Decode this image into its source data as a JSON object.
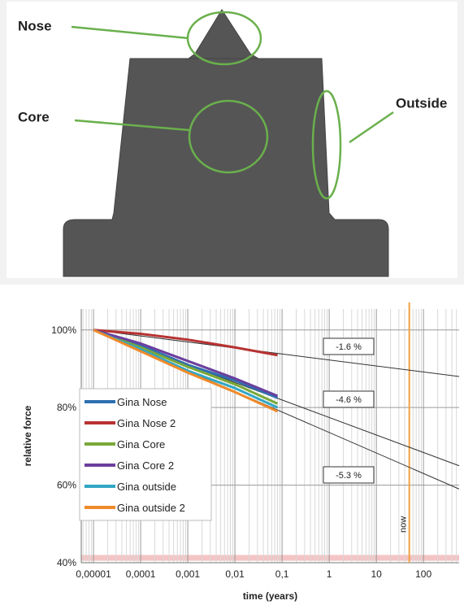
{
  "diagram": {
    "labels": {
      "nose": "Nose",
      "core": "Core",
      "outside": "Outside"
    }
  },
  "chart_data": {
    "type": "line",
    "x_axis_label": "time (years)",
    "y_axis_label": "relative force",
    "log_x": true,
    "grid": true,
    "minor_grid": true,
    "legend_position": "lower-left",
    "xlim": [
      5.5e-06,
      570
    ],
    "ylim": [
      40,
      105.4
    ],
    "xticks": [
      {
        "value": 1e-05,
        "label": "0,00001"
      },
      {
        "value": 0.0001,
        "label": "0,0001"
      },
      {
        "value": 0.001,
        "label": "0,001"
      },
      {
        "value": 0.01,
        "label": "0,01"
      },
      {
        "value": 0.1,
        "label": "0,1"
      },
      1,
      10,
      100
    ],
    "yticks": [
      {
        "value": 40,
        "label": "40%"
      },
      {
        "value": 60,
        "label": "60%"
      },
      {
        "value": 80,
        "label": "80%"
      },
      {
        "value": 100,
        "label": "100%"
      }
    ],
    "x": [
      1e-05,
      0.0001,
      0.001,
      0.01,
      0.08
    ],
    "series": [
      {
        "name": "Gina Nose",
        "color": "#2e6fb0",
        "values": [
          100,
          96,
          91,
          87,
          82.5
        ]
      },
      {
        "name": "Gina Nose 2",
        "color": "#b83232",
        "values": [
          100,
          99,
          97.5,
          95.5,
          93.5
        ]
      },
      {
        "name": "Gina Core",
        "color": "#79a838",
        "values": [
          100,
          95.5,
          90.5,
          86,
          81
        ]
      },
      {
        "name": "Gina Core 2",
        "color": "#6b3f9e",
        "values": [
          100,
          96.5,
          92,
          87.5,
          83
        ]
      },
      {
        "name": "Gina outside",
        "color": "#31a6c4",
        "values": [
          100,
          95,
          89.5,
          85,
          80
        ]
      },
      {
        "name": "Gina outside 2",
        "color": "#ef8a2a",
        "values": [
          100,
          94.5,
          89,
          84,
          79
        ]
      }
    ],
    "trend_lines": [
      {
        "label": "-1.6 %",
        "x": [
          1e-05,
          570
        ],
        "values": [
          100,
          88
        ]
      },
      {
        "label": "-4.6 %",
        "x": [
          1e-05,
          570
        ],
        "values": [
          100,
          65
        ]
      },
      {
        "label": "-5.3 %",
        "x": [
          1e-05,
          570
        ],
        "values": [
          100,
          59
        ]
      }
    ],
    "now_line": {
      "x": 50,
      "label": "now",
      "color": "#f0a040"
    },
    "highlight_band": {
      "range": [
        40.5,
        42
      ],
      "color": "#f4c4c4"
    }
  }
}
